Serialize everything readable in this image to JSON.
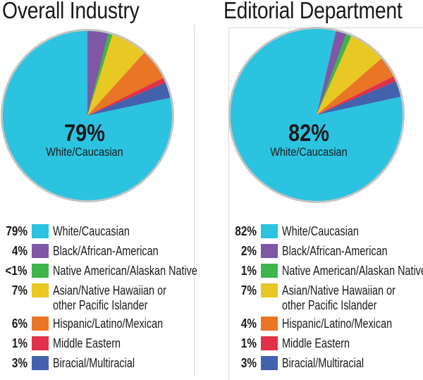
{
  "chart_data": [
    {
      "type": "pie",
      "title": "Overall Industry",
      "center_value": "79%",
      "center_label": "White/Caucasian",
      "categories": [
        "White/Caucasian",
        "Black/African-American",
        "Native American/Alaskan Native",
        "Asian/Native Hawaiian or other Pacific Islander",
        "Hispanic/Latino/Mexican",
        "Middle Eastern",
        "Biracial/Multiracial"
      ],
      "label_lines": [
        [
          "White/Caucasian"
        ],
        [
          "Black/African-American"
        ],
        [
          "Native American/Alaskan Native"
        ],
        [
          "Asian/Native Hawaiian or",
          "other Pacific Islander"
        ],
        [
          "Hispanic/Latino/Mexican"
        ],
        [
          "Middle Eastern"
        ],
        [
          "Biracial/Multiracial"
        ]
      ],
      "value_labels": [
        "79%",
        "4%",
        "<1%",
        "7%",
        "6%",
        "1%",
        "3%"
      ],
      "values": [
        79,
        4,
        0.8,
        7,
        6,
        1,
        3
      ],
      "start_angle_deg": 0
    },
    {
      "type": "pie",
      "title": "Editorial Department",
      "center_value": "82%",
      "center_label": "White/Caucasian",
      "categories": [
        "White/Caucasian",
        "Black/African-American",
        "Native American/Alaskan Native",
        "Asian/Native Hawaiian or other Pacific Islander",
        "Hispanic/Latino/Mexican",
        "Middle Eastern",
        "Biracial/Multiracial"
      ],
      "label_lines": [
        [
          "White/Caucasian"
        ],
        [
          "Black/African-American"
        ],
        [
          "Native American/Alaskan Native"
        ],
        [
          "Asian/Native Hawaiian or",
          "other Pacific Islander"
        ],
        [
          "Hispanic/Latino/Mexican"
        ],
        [
          "Middle Eastern"
        ],
        [
          "Biracial/Multiracial"
        ]
      ],
      "value_labels": [
        "82%",
        "2%",
        "1%",
        "7%",
        "4%",
        "1%",
        "3%"
      ],
      "values": [
        82,
        2,
        1,
        7,
        4,
        1,
        3
      ],
      "start_angle_deg": 13
    }
  ],
  "colors": [
    "#2bc3e0",
    "#7f57a6",
    "#3db54a",
    "#e8c823",
    "#e97525",
    "#e0304a",
    "#4361ad"
  ],
  "border_color": "#c4c4c4"
}
